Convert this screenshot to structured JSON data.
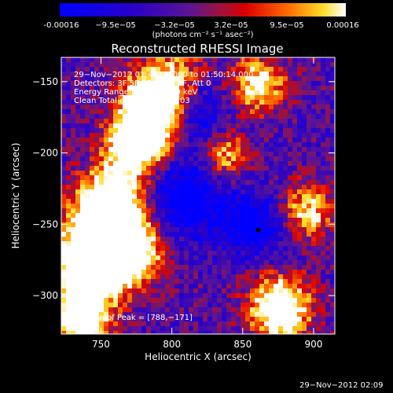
{
  "colorbar": {
    "tick_labels": [
      "-0.00016",
      "−9.5e−05",
      "−3.2e−05",
      "3.2e−05",
      "9.5e−05",
      "0.00016"
    ],
    "units": "(photons cm⁻² s⁻¹ asec⁻²)",
    "range": [
      -0.00016,
      0.00016
    ]
  },
  "chart_data": {
    "type": "heatmap",
    "title": "Reconstructed RHESSI Image",
    "xlabel": "Heliocentric X (arcsec)",
    "ylabel": "Heliocentric Y (arcsec)",
    "xlim": [
      722,
      915
    ],
    "ylim": [
      -327,
      -133
    ],
    "xticks": [
      750,
      800,
      850,
      900
    ],
    "yticks": [
      -150,
      -200,
      -250,
      -300
    ],
    "xtick_labels": [
      "750",
      "800",
      "850",
      "900"
    ],
    "ytick_labels": [
      "−150",
      "−200",
      "−250",
      "−300"
    ],
    "annotations": [
      "29−Nov−2012 01:46:08.000 to 01:50:14.000",
      "Detectors: 3F 5F 6F 7F 8F 9F, Att 0",
      "Energy Range: 25.0 − 50.0 keV",
      "Clean     Total counts: 4.37E+03"
    ],
    "peak_label": "Position of Peak = [788,−171]",
    "peak_position": [
      788,
      -171
    ],
    "marker": [
      861,
      -254
    ]
  },
  "timestamp": "29−Nov−2012 02:09",
  "colors": {
    "background": "#000000",
    "foreground": "#ffffff"
  }
}
